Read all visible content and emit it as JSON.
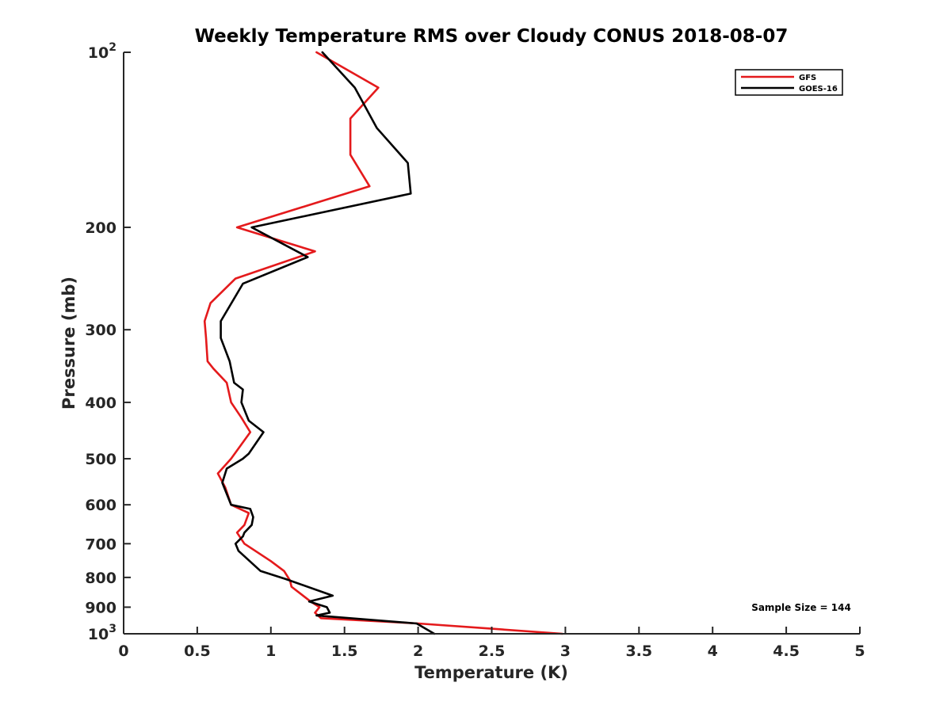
{
  "chart_data": {
    "type": "line",
    "title": "Weekly Temperature RMS over Cloudy CONUS 2018-08-07",
    "xlabel": "Temperature (K)",
    "ylabel": "Pressure (mb)",
    "xlim": [
      0,
      5
    ],
    "ylim": [
      100,
      1000
    ],
    "y_scale": "log",
    "y_reversed": true,
    "x_ticks": [
      "0",
      "0.5",
      "1",
      "1.5",
      "2",
      "2.5",
      "3",
      "3.5",
      "4",
      "4.5",
      "5"
    ],
    "y_ticks": [
      {
        "value": 100,
        "label": "10",
        "sup": "2"
      },
      {
        "value": 200,
        "label": "200"
      },
      {
        "value": 300,
        "label": "300"
      },
      {
        "value": 400,
        "label": "400"
      },
      {
        "value": 500,
        "label": "500"
      },
      {
        "value": 600,
        "label": "600"
      },
      {
        "value": 700,
        "label": "700"
      },
      {
        "value": 800,
        "label": "800"
      },
      {
        "value": 900,
        "label": "900"
      },
      {
        "value": 1000,
        "label": "10",
        "sup": "3"
      }
    ],
    "grid": false,
    "legend_position": "top-right",
    "annotation": "Sample Size = 144",
    "series": [
      {
        "name": "GFS",
        "color": "#e41a1c",
        "points": [
          [
            1.31,
            100
          ],
          [
            1.73,
            115
          ],
          [
            1.54,
            130
          ],
          [
            1.54,
            150
          ],
          [
            1.67,
            170
          ],
          [
            0.77,
            200
          ],
          [
            1.3,
            220
          ],
          [
            0.76,
            245
          ],
          [
            0.59,
            270
          ],
          [
            0.55,
            290
          ],
          [
            0.56,
            310
          ],
          [
            0.57,
            340
          ],
          [
            0.61,
            350
          ],
          [
            0.7,
            370
          ],
          [
            0.73,
            400
          ],
          [
            0.8,
            425
          ],
          [
            0.86,
            450
          ],
          [
            0.73,
            500
          ],
          [
            0.64,
            530
          ],
          [
            0.69,
            560
          ],
          [
            0.73,
            600
          ],
          [
            0.85,
            620
          ],
          [
            0.82,
            650
          ],
          [
            0.77,
            670
          ],
          [
            0.82,
            700
          ],
          [
            1.0,
            750
          ],
          [
            1.09,
            780
          ],
          [
            1.13,
            810
          ],
          [
            1.14,
            830
          ],
          [
            1.27,
            880
          ],
          [
            1.33,
            900
          ],
          [
            1.3,
            920
          ],
          [
            1.34,
            940
          ],
          [
            2.0,
            960
          ],
          [
            2.5,
            980
          ],
          [
            2.98,
            1000
          ]
        ]
      },
      {
        "name": "GOES-16",
        "color": "#000000",
        "points": [
          [
            1.35,
            100
          ],
          [
            1.57,
            115
          ],
          [
            1.72,
            135
          ],
          [
            1.93,
            155
          ],
          [
            1.95,
            175
          ],
          [
            0.87,
            200
          ],
          [
            1.25,
            225
          ],
          [
            0.81,
            250
          ],
          [
            0.66,
            290
          ],
          [
            0.66,
            310
          ],
          [
            0.72,
            340
          ],
          [
            0.75,
            370
          ],
          [
            0.81,
            380
          ],
          [
            0.8,
            400
          ],
          [
            0.85,
            430
          ],
          [
            0.95,
            450
          ],
          [
            0.85,
            490
          ],
          [
            0.81,
            500
          ],
          [
            0.7,
            520
          ],
          [
            0.67,
            550
          ],
          [
            0.73,
            600
          ],
          [
            0.86,
            610
          ],
          [
            0.88,
            630
          ],
          [
            0.87,
            650
          ],
          [
            0.82,
            670
          ],
          [
            0.81,
            680
          ],
          [
            0.76,
            700
          ],
          [
            0.78,
            720
          ],
          [
            0.93,
            780
          ],
          [
            1.1,
            805
          ],
          [
            1.42,
            860
          ],
          [
            1.26,
            880
          ],
          [
            1.38,
            900
          ],
          [
            1.4,
            920
          ],
          [
            1.31,
            930
          ],
          [
            1.99,
            960
          ],
          [
            2.11,
            1000
          ]
        ]
      }
    ]
  }
}
